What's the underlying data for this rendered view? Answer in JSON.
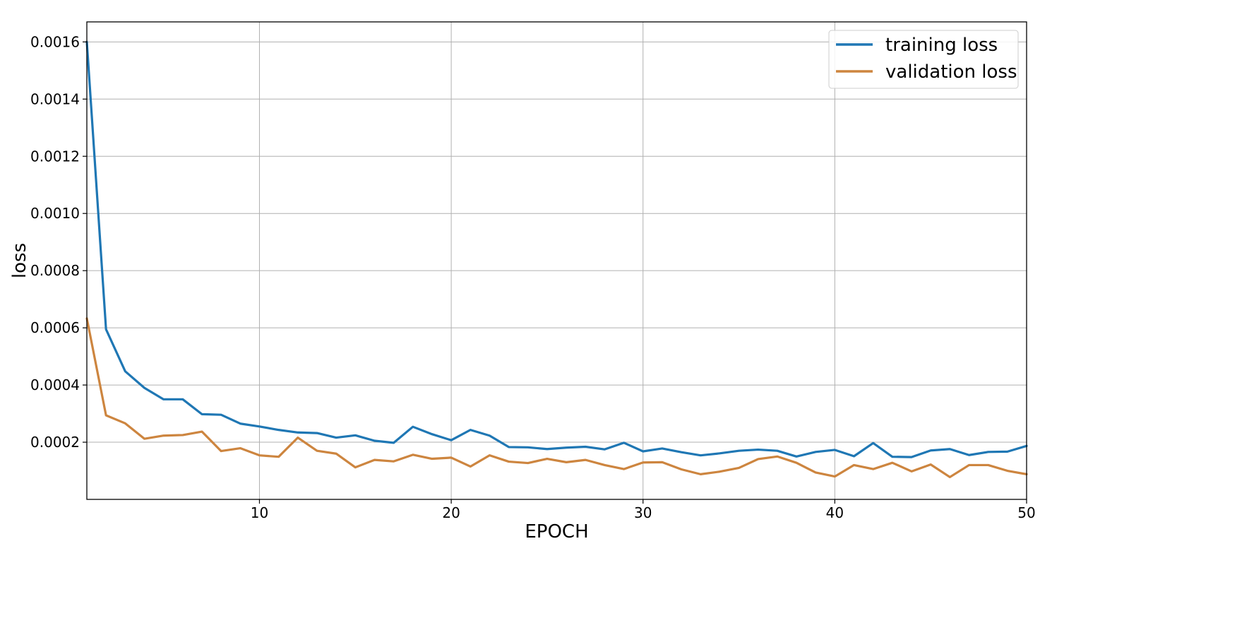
{
  "chart_data": {
    "type": "line",
    "xlabel": "EPOCH",
    "ylabel": "loss",
    "xlim": [
      1,
      50
    ],
    "ylim": [
      0,
      0.00167
    ],
    "x_ticks": [
      10,
      20,
      30,
      40,
      50
    ],
    "x_tick_labels": [
      "10",
      "20",
      "30",
      "40",
      "50"
    ],
    "y_ticks": [
      0.0002,
      0.0004,
      0.0006,
      0.0008,
      0.001,
      0.0012,
      0.0014,
      0.0016
    ],
    "y_tick_labels": [
      "0.0002",
      "0.0004",
      "0.0006",
      "0.0008",
      "0.0010",
      "0.0012",
      "0.0014",
      "0.0016"
    ],
    "grid": true,
    "legend_position": "top-right",
    "x": [
      1,
      2,
      3,
      4,
      5,
      6,
      7,
      8,
      9,
      10,
      11,
      12,
      13,
      14,
      15,
      16,
      17,
      18,
      19,
      20,
      21,
      22,
      23,
      24,
      25,
      26,
      27,
      28,
      29,
      30,
      31,
      32,
      33,
      34,
      35,
      36,
      37,
      38,
      39,
      40,
      41,
      42,
      43,
      44,
      45,
      46,
      47,
      48,
      49,
      50
    ],
    "series": [
      {
        "name": "training loss",
        "color": "#1f77b4",
        "values": [
          0.0016,
          0.000595,
          0.000448,
          0.00039,
          0.00035,
          0.00035,
          0.000298,
          0.000296,
          0.000265,
          0.000255,
          0.000243,
          0.000234,
          0.000232,
          0.000216,
          0.000224,
          0.000205,
          0.000198,
          0.000254,
          0.000228,
          0.000207,
          0.000243,
          0.000223,
          0.000183,
          0.000182,
          0.000176,
          0.000181,
          0.000184,
          0.000175,
          0.000198,
          0.000168,
          0.000178,
          0.000165,
          0.000154,
          0.000161,
          0.00017,
          0.000174,
          0.00017,
          0.00015,
          0.000166,
          0.000173,
          0.000151,
          0.000197,
          0.000149,
          0.000148,
          0.000171,
          0.000176,
          0.000155,
          0.000166,
          0.000167,
          0.000187
        ]
      },
      {
        "name": "validation loss",
        "color": "#cd853f",
        "values": [
          0.000633,
          0.000294,
          0.000266,
          0.000212,
          0.000223,
          0.000225,
          0.000237,
          0.000169,
          0.000179,
          0.000154,
          0.000149,
          0.000216,
          0.00017,
          0.00016,
          0.000112,
          0.000138,
          0.000133,
          0.000156,
          0.000142,
          0.000146,
          0.000115,
          0.000154,
          0.000132,
          0.000127,
          0.000142,
          0.00013,
          0.000138,
          0.00012,
          0.000106,
          0.000129,
          0.00013,
          0.000105,
          8.8e-05,
          9.7e-05,
          0.00011,
          0.000141,
          0.00015,
          0.000128,
          9.4e-05,
          8e-05,
          0.00012,
          0.000106,
          0.000128,
          9.8e-05,
          0.000122,
          7.8e-05,
          0.00012,
          0.00012,
          0.0001,
          8.8e-05
        ]
      }
    ]
  }
}
